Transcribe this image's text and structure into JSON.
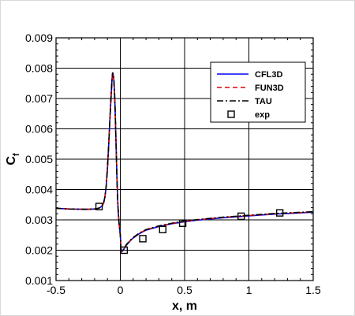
{
  "chart_data": {
    "type": "line",
    "title": "",
    "xlabel": "x, m",
    "ylabel": "C",
    "ylabel_subscript": "f",
    "xlim": [
      -0.5,
      1.5
    ],
    "ylim": [
      0.001,
      0.009
    ],
    "xticks": [
      -0.5,
      0,
      0.5,
      1,
      1.5
    ],
    "xtick_labels": [
      "-0.5",
      "0",
      "0.5",
      "1",
      "1.5"
    ],
    "yticks": [
      0.001,
      0.002,
      0.003,
      0.004,
      0.005,
      0.006,
      0.007,
      0.008,
      0.009
    ],
    "ytick_labels": [
      "0.001",
      "0.002",
      "0.003",
      "0.004",
      "0.005",
      "0.006",
      "0.007",
      "0.008",
      "0.009"
    ],
    "grid": true,
    "legend_position": "top-right",
    "series": [
      {
        "name": "CFL3D",
        "style": "solid",
        "color": "#0000ff",
        "x": [
          -0.5,
          -0.4,
          -0.3,
          -0.25,
          -0.2,
          -0.18,
          -0.16,
          -0.15,
          -0.14,
          -0.13,
          -0.12,
          -0.11,
          -0.1,
          -0.09,
          -0.08,
          -0.07,
          -0.065,
          -0.06,
          -0.055,
          -0.05,
          -0.045,
          -0.04,
          -0.035,
          -0.03,
          -0.025,
          -0.02,
          -0.015,
          -0.01,
          -0.005,
          0.0,
          0.005,
          0.01,
          0.02,
          0.03,
          0.05,
          0.08,
          0.1,
          0.15,
          0.2,
          0.3,
          0.4,
          0.5,
          0.6,
          0.7,
          0.8,
          0.9,
          1.0,
          1.1,
          1.2,
          1.3,
          1.4,
          1.5
        ],
        "y": [
          0.00338,
          0.00336,
          0.00335,
          0.00335,
          0.00336,
          0.00337,
          0.0034,
          0.00343,
          0.00347,
          0.00355,
          0.00375,
          0.0041,
          0.0047,
          0.0055,
          0.0064,
          0.0072,
          0.0076,
          0.00785,
          0.0078,
          0.0076,
          0.0072,
          0.0066,
          0.0058,
          0.005,
          0.0042,
          0.0036,
          0.0032,
          0.0029,
          0.0027,
          0.0025,
          0.00205,
          0.00195,
          0.00198,
          0.00205,
          0.00218,
          0.00232,
          0.0024,
          0.00255,
          0.00266,
          0.00278,
          0.00287,
          0.00294,
          0.00299,
          0.00303,
          0.00307,
          0.0031,
          0.00313,
          0.00316,
          0.00319,
          0.00321,
          0.00323,
          0.00325
        ]
      },
      {
        "name": "FUN3D",
        "style": "dashed",
        "color": "#dd0000",
        "x": [
          -0.5,
          -0.4,
          -0.3,
          -0.25,
          -0.2,
          -0.18,
          -0.16,
          -0.15,
          -0.14,
          -0.13,
          -0.12,
          -0.11,
          -0.1,
          -0.09,
          -0.08,
          -0.07,
          -0.065,
          -0.06,
          -0.055,
          -0.05,
          -0.045,
          -0.04,
          -0.035,
          -0.03,
          -0.025,
          -0.02,
          -0.015,
          -0.01,
          -0.005,
          0.0,
          0.005,
          0.01,
          0.02,
          0.03,
          0.05,
          0.08,
          0.1,
          0.15,
          0.2,
          0.3,
          0.4,
          0.5,
          0.6,
          0.7,
          0.8,
          0.9,
          1.0,
          1.1,
          1.2,
          1.3,
          1.4,
          1.5
        ],
        "y": [
          0.00338,
          0.00336,
          0.00335,
          0.00335,
          0.00336,
          0.00337,
          0.0034,
          0.00343,
          0.00347,
          0.00355,
          0.00375,
          0.0041,
          0.0047,
          0.0055,
          0.0064,
          0.0072,
          0.0076,
          0.00782,
          0.00778,
          0.0076,
          0.0072,
          0.0066,
          0.0058,
          0.005,
          0.0042,
          0.0036,
          0.0032,
          0.0029,
          0.0027,
          0.0025,
          0.00205,
          0.00196,
          0.00199,
          0.00206,
          0.00219,
          0.00233,
          0.00241,
          0.00256,
          0.00267,
          0.00279,
          0.00288,
          0.00295,
          0.003,
          0.00304,
          0.00308,
          0.00311,
          0.00314,
          0.00317,
          0.0032,
          0.00322,
          0.00324,
          0.00326
        ]
      },
      {
        "name": "TAU",
        "style": "dashdot",
        "color": "#000000",
        "x": [
          -0.5,
          -0.4,
          -0.3,
          -0.25,
          -0.2,
          -0.18,
          -0.16,
          -0.15,
          -0.14,
          -0.13,
          -0.12,
          -0.11,
          -0.1,
          -0.09,
          -0.08,
          -0.07,
          -0.065,
          -0.06,
          -0.055,
          -0.05,
          -0.045,
          -0.04,
          -0.035,
          -0.03,
          -0.025,
          -0.02,
          -0.015,
          -0.01,
          -0.005,
          0.0,
          0.005,
          0.01,
          0.02,
          0.03,
          0.05,
          0.08,
          0.1,
          0.15,
          0.2,
          0.3,
          0.4,
          0.5,
          0.6,
          0.7,
          0.8,
          0.9,
          1.0,
          1.1,
          1.2,
          1.3,
          1.4,
          1.5
        ],
        "y": [
          0.00338,
          0.00336,
          0.00335,
          0.00335,
          0.00336,
          0.00337,
          0.0034,
          0.00343,
          0.00347,
          0.00355,
          0.00375,
          0.0041,
          0.0047,
          0.0055,
          0.0064,
          0.0072,
          0.0076,
          0.00786,
          0.0078,
          0.0076,
          0.0072,
          0.0066,
          0.0058,
          0.005,
          0.0042,
          0.0036,
          0.0032,
          0.0029,
          0.0027,
          0.0025,
          0.00205,
          0.00197,
          0.002,
          0.00207,
          0.0022,
          0.00234,
          0.00242,
          0.00257,
          0.00268,
          0.0028,
          0.00289,
          0.00296,
          0.00301,
          0.00305,
          0.00309,
          0.00312,
          0.00315,
          0.00318,
          0.00321,
          0.00323,
          0.00325,
          0.00327
        ]
      },
      {
        "name": "exp",
        "style": "markers",
        "marker": "square",
        "color": "#000000",
        "x": [
          -0.165,
          0.03,
          0.175,
          0.33,
          0.485,
          0.94,
          1.24
        ],
        "y": [
          0.00344,
          0.002,
          0.00238,
          0.00268,
          0.00289,
          0.00312,
          0.00323
        ]
      }
    ]
  }
}
